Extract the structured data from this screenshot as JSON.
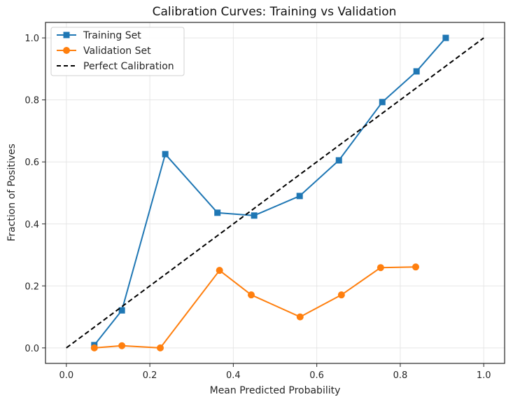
{
  "chart_data": {
    "type": "line",
    "title": "Calibration Curves: Training vs Validation",
    "xlabel": "Mean Predicted Probability",
    "ylabel": "Fraction of Positives",
    "xlim": [
      -0.05,
      1.05
    ],
    "ylim": [
      -0.05,
      1.05
    ],
    "xticks": [
      0.0,
      0.2,
      0.4,
      0.6,
      0.8,
      1.0
    ],
    "yticks": [
      0.0,
      0.2,
      0.4,
      0.6,
      0.8,
      1.0
    ],
    "xtick_labels": [
      "0.0",
      "0.2",
      "0.4",
      "0.6",
      "0.8",
      "1.0"
    ],
    "ytick_labels": [
      "0.0",
      "0.2",
      "0.4",
      "0.6",
      "0.8",
      "1.0"
    ],
    "grid": true,
    "legend_position": "top-left",
    "series": [
      {
        "name": "Training Set",
        "color": "#1f77b4",
        "marker": "square",
        "linestyle": "solid",
        "x": [
          0.067,
          0.133,
          0.237,
          0.362,
          0.45,
          0.559,
          0.653,
          0.757,
          0.839,
          0.909
        ],
        "y": [
          0.009,
          0.121,
          0.625,
          0.436,
          0.427,
          0.49,
          0.605,
          0.793,
          0.892,
          1.0
        ]
      },
      {
        "name": "Validation Set",
        "color": "#ff7f0e",
        "marker": "circle",
        "linestyle": "solid",
        "x": [
          0.067,
          0.133,
          0.225,
          0.367,
          0.443,
          0.56,
          0.659,
          0.753,
          0.837
        ],
        "y": [
          0.0,
          0.007,
          0.0,
          0.25,
          0.171,
          0.1,
          0.171,
          0.259,
          0.261
        ]
      },
      {
        "name": "Perfect Calibration",
        "color": "#000000",
        "marker": "none",
        "linestyle": "dashed",
        "x": [
          0.0,
          1.0
        ],
        "y": [
          0.0,
          1.0
        ]
      }
    ]
  }
}
